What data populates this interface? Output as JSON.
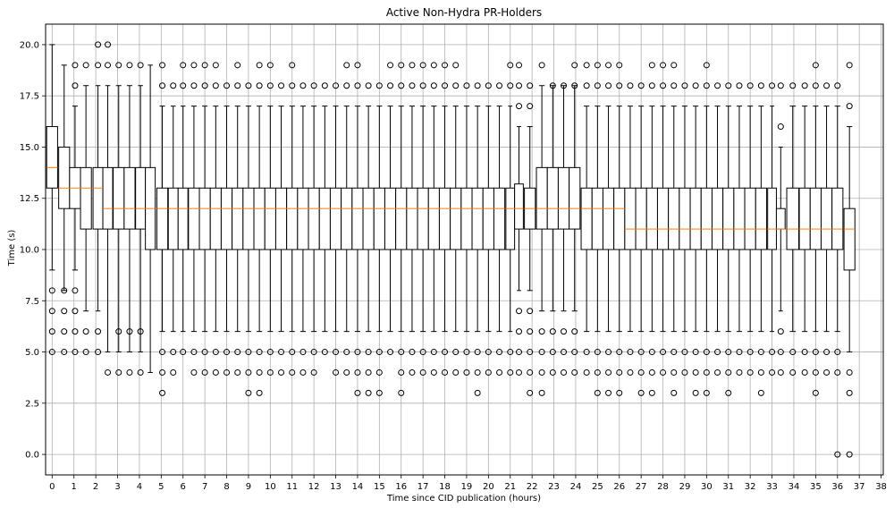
{
  "chart_data": {
    "type": "box",
    "title": "Active Non-Hydra PR-Holders",
    "xlabel": "Time since CID publication (hours)",
    "ylabel": "Time (s)",
    "ylim": [
      -1,
      21
    ],
    "xlim": [
      -0.3,
      38.1
    ],
    "grid": true,
    "x_ticks": [
      0,
      1,
      2,
      3,
      4,
      5,
      6,
      7,
      8,
      9,
      10,
      11,
      12,
      13,
      14,
      15,
      16,
      17,
      18,
      19,
      20,
      21,
      22,
      23,
      24,
      25,
      26,
      27,
      28,
      29,
      30,
      31,
      32,
      33,
      34,
      35,
      36,
      37,
      38
    ],
    "y_ticks": [
      "0.0",
      "2.5",
      "5.0",
      "7.5",
      "10.0",
      "12.5",
      "15.0",
      "17.5",
      "20.0"
    ],
    "y_tick_values": [
      0,
      2.5,
      5,
      7.5,
      10,
      12.5,
      15,
      17.5,
      20
    ],
    "colors": {
      "box_edge": "#000000",
      "median": "#ff7f0e",
      "grid": "#b0b0b0"
    },
    "boxes": [
      {
        "x": 0.0,
        "q1": 13,
        "med": 14,
        "q3": 16,
        "wlo": 9,
        "whi": 20,
        "fliers": [
          5,
          6,
          7,
          8
        ]
      },
      {
        "x": 0.55,
        "q1": 12,
        "med": 13,
        "q3": 15,
        "wlo": 8,
        "whi": 19,
        "fliers": [
          5,
          6,
          7,
          8
        ]
      },
      {
        "x": 1.05,
        "q1": 12,
        "med": 13,
        "q3": 14,
        "wlo": 9,
        "whi": 17,
        "fliers": [
          5,
          6,
          7,
          8,
          18,
          19
        ]
      },
      {
        "x": 1.55,
        "q1": 11,
        "med": 13,
        "q3": 14,
        "wlo": 7,
        "whi": 18,
        "fliers": [
          5,
          6,
          19
        ]
      },
      {
        "x": 2.1,
        "q1": 11,
        "med": 13,
        "q3": 14,
        "wlo": 7,
        "whi": 18,
        "fliers": [
          5,
          6,
          19,
          20
        ]
      },
      {
        "x": 2.55,
        "q1": 11,
        "med": 12,
        "q3": 14,
        "wlo": 5,
        "whi": 18,
        "fliers": [
          4,
          19,
          20
        ]
      },
      {
        "x": 3.05,
        "q1": 11,
        "med": 12,
        "q3": 14,
        "wlo": 5,
        "whi": 18,
        "fliers": [
          4,
          6,
          19
        ]
      },
      {
        "x": 3.55,
        "q1": 11,
        "med": 12,
        "q3": 14,
        "wlo": 5,
        "whi": 18,
        "fliers": [
          4,
          6,
          19
        ]
      },
      {
        "x": 4.05,
        "q1": 11,
        "med": 12,
        "q3": 14,
        "wlo": 5,
        "whi": 18,
        "fliers": [
          4,
          6,
          19
        ]
      },
      {
        "x": 4.5,
        "q1": 10,
        "med": 12,
        "q3": 14,
        "wlo": 4,
        "whi": 19,
        "fliers": []
      },
      {
        "x": 5.05,
        "q1": 10,
        "med": 12,
        "q3": 13,
        "wlo": 6,
        "whi": 17,
        "fliers": [
          3,
          4,
          5,
          18,
          19
        ]
      },
      {
        "x": 5.55,
        "q1": 10,
        "med": 12,
        "q3": 13,
        "wlo": 6,
        "whi": 17,
        "fliers": [
          4,
          5,
          18
        ]
      },
      {
        "x": 6.0,
        "q1": 10,
        "med": 12,
        "q3": 13,
        "wlo": 6,
        "whi": 17,
        "fliers": [
          5,
          18,
          19
        ]
      },
      {
        "x": 6.5,
        "q1": 10,
        "med": 12,
        "q3": 13,
        "wlo": 6,
        "whi": 17,
        "fliers": [
          4,
          5,
          18,
          19
        ]
      },
      {
        "x": 7.0,
        "q1": 10,
        "med": 12,
        "q3": 13,
        "wlo": 6,
        "whi": 17,
        "fliers": [
          4,
          5,
          18,
          19
        ]
      },
      {
        "x": 7.5,
        "q1": 10,
        "med": 12,
        "q3": 13,
        "wlo": 6,
        "whi": 17,
        "fliers": [
          4,
          5,
          18,
          19
        ]
      },
      {
        "x": 8.0,
        "q1": 10,
        "med": 12,
        "q3": 13,
        "wlo": 6,
        "whi": 17,
        "fliers": [
          4,
          5,
          18
        ]
      },
      {
        "x": 8.5,
        "q1": 10,
        "med": 12,
        "q3": 13,
        "wlo": 6,
        "whi": 17,
        "fliers": [
          4,
          5,
          18,
          19
        ]
      },
      {
        "x": 9.0,
        "q1": 10,
        "med": 12,
        "q3": 13,
        "wlo": 6,
        "whi": 17,
        "fliers": [
          3,
          4,
          5,
          18
        ]
      },
      {
        "x": 9.5,
        "q1": 10,
        "med": 12,
        "q3": 13,
        "wlo": 6,
        "whi": 17,
        "fliers": [
          3,
          4,
          5,
          18,
          19
        ]
      },
      {
        "x": 10.0,
        "q1": 10,
        "med": 12,
        "q3": 13,
        "wlo": 6,
        "whi": 17,
        "fliers": [
          4,
          5,
          18,
          19
        ]
      },
      {
        "x": 10.5,
        "q1": 10,
        "med": 12,
        "q3": 13,
        "wlo": 6,
        "whi": 17,
        "fliers": [
          4,
          5,
          18
        ]
      },
      {
        "x": 11.0,
        "q1": 10,
        "med": 12,
        "q3": 13,
        "wlo": 6,
        "whi": 17,
        "fliers": [
          4,
          5,
          18,
          19
        ]
      },
      {
        "x": 11.5,
        "q1": 10,
        "med": 12,
        "q3": 13,
        "wlo": 6,
        "whi": 17,
        "fliers": [
          4,
          5,
          18
        ]
      },
      {
        "x": 12.0,
        "q1": 10,
        "med": 12,
        "q3": 13,
        "wlo": 6,
        "whi": 17,
        "fliers": [
          4,
          5,
          18
        ]
      },
      {
        "x": 12.5,
        "q1": 10,
        "med": 12,
        "q3": 13,
        "wlo": 6,
        "whi": 17,
        "fliers": [
          5,
          18
        ]
      },
      {
        "x": 13.0,
        "q1": 10,
        "med": 12,
        "q3": 13,
        "wlo": 6,
        "whi": 17,
        "fliers": [
          4,
          5,
          18
        ]
      },
      {
        "x": 13.5,
        "q1": 10,
        "med": 12,
        "q3": 13,
        "wlo": 6,
        "whi": 17,
        "fliers": [
          4,
          5,
          18,
          19
        ]
      },
      {
        "x": 14.0,
        "q1": 10,
        "med": 12,
        "q3": 13,
        "wlo": 6,
        "whi": 17,
        "fliers": [
          3,
          4,
          5,
          18,
          19
        ]
      },
      {
        "x": 14.5,
        "q1": 10,
        "med": 12,
        "q3": 13,
        "wlo": 6,
        "whi": 17,
        "fliers": [
          3,
          4,
          5,
          18
        ]
      },
      {
        "x": 15.0,
        "q1": 10,
        "med": 12,
        "q3": 13,
        "wlo": 6,
        "whi": 17,
        "fliers": [
          3,
          4,
          5,
          18
        ]
      },
      {
        "x": 15.5,
        "q1": 10,
        "med": 12,
        "q3": 13,
        "wlo": 6,
        "whi": 17,
        "fliers": [
          5,
          18,
          19
        ]
      },
      {
        "x": 16.0,
        "q1": 10,
        "med": 12,
        "q3": 13,
        "wlo": 6,
        "whi": 17,
        "fliers": [
          3,
          4,
          5,
          18,
          19
        ]
      },
      {
        "x": 16.5,
        "q1": 10,
        "med": 12,
        "q3": 13,
        "wlo": 6,
        "whi": 17,
        "fliers": [
          4,
          5,
          18,
          19
        ]
      },
      {
        "x": 17.0,
        "q1": 10,
        "med": 12,
        "q3": 13,
        "wlo": 6,
        "whi": 17,
        "fliers": [
          4,
          5,
          18,
          19
        ]
      },
      {
        "x": 17.5,
        "q1": 10,
        "med": 12,
        "q3": 13,
        "wlo": 6,
        "whi": 17,
        "fliers": [
          4,
          5,
          18,
          19
        ]
      },
      {
        "x": 18.0,
        "q1": 10,
        "med": 12,
        "q3": 13,
        "wlo": 6,
        "whi": 17,
        "fliers": [
          4,
          5,
          18,
          19
        ]
      },
      {
        "x": 18.5,
        "q1": 10,
        "med": 12,
        "q3": 13,
        "wlo": 6,
        "whi": 17,
        "fliers": [
          4,
          5,
          18,
          19
        ]
      },
      {
        "x": 19.0,
        "q1": 10,
        "med": 12,
        "q3": 13,
        "wlo": 6,
        "whi": 17,
        "fliers": [
          4,
          5,
          18
        ]
      },
      {
        "x": 19.5,
        "q1": 10,
        "med": 12,
        "q3": 13,
        "wlo": 6,
        "whi": 17,
        "fliers": [
          3,
          4,
          5,
          18
        ]
      },
      {
        "x": 20.0,
        "q1": 10,
        "med": 12,
        "q3": 13,
        "wlo": 6,
        "whi": 17,
        "fliers": [
          4,
          5,
          18
        ]
      },
      {
        "x": 20.5,
        "q1": 10,
        "med": 12,
        "q3": 13,
        "wlo": 6,
        "whi": 17,
        "fliers": [
          4,
          5,
          18
        ]
      },
      {
        "x": 21.0,
        "q1": 10,
        "med": 12,
        "q3": 13,
        "wlo": 6,
        "whi": 17,
        "fliers": [
          4,
          5,
          18,
          19
        ]
      },
      {
        "x": 21.4,
        "q1": 11,
        "med": 12,
        "q3": 13.2,
        "wlo": 8,
        "whi": 16,
        "fliers": [
          4,
          5,
          6,
          7,
          17,
          18,
          19
        ]
      },
      {
        "x": 21.9,
        "q1": 11,
        "med": 12,
        "q3": 13,
        "wlo": 8,
        "whi": 16,
        "fliers": [
          3,
          4,
          5,
          6,
          7,
          17,
          18
        ]
      },
      {
        "x": 22.45,
        "q1": 11,
        "med": 12,
        "q3": 14,
        "wlo": 7,
        "whi": 18,
        "fliers": [
          3,
          4,
          5,
          6,
          19
        ]
      },
      {
        "x": 22.95,
        "q1": 11,
        "med": 12,
        "q3": 14,
        "wlo": 7,
        "whi": 18,
        "fliers": [
          4,
          5,
          6,
          18
        ]
      },
      {
        "x": 23.45,
        "q1": 11,
        "med": 12,
        "q3": 14,
        "wlo": 7,
        "whi": 18,
        "fliers": [
          4,
          5,
          6,
          18
        ]
      },
      {
        "x": 23.95,
        "q1": 11,
        "med": 12,
        "q3": 14,
        "wlo": 7,
        "whi": 18,
        "fliers": [
          4,
          5,
          6,
          18,
          19
        ]
      },
      {
        "x": 24.5,
        "q1": 10,
        "med": 12,
        "q3": 13,
        "wlo": 6,
        "whi": 17,
        "fliers": [
          4,
          5,
          18,
          19
        ]
      },
      {
        "x": 25.0,
        "q1": 10,
        "med": 12,
        "q3": 13,
        "wlo": 6,
        "whi": 17,
        "fliers": [
          3,
          4,
          5,
          18,
          19
        ]
      },
      {
        "x": 25.5,
        "q1": 10,
        "med": 12,
        "q3": 13,
        "wlo": 6,
        "whi": 17,
        "fliers": [
          3,
          4,
          5,
          18,
          19
        ]
      },
      {
        "x": 26.0,
        "q1": 10,
        "med": 12,
        "q3": 13,
        "wlo": 6,
        "whi": 17,
        "fliers": [
          3,
          4,
          5,
          18,
          19
        ]
      },
      {
        "x": 26.5,
        "q1": 10,
        "med": 11,
        "q3": 13,
        "wlo": 6,
        "whi": 17,
        "fliers": [
          4,
          5,
          18
        ]
      },
      {
        "x": 27.0,
        "q1": 10,
        "med": 11,
        "q3": 13,
        "wlo": 6,
        "whi": 17,
        "fliers": [
          3,
          4,
          5,
          18
        ]
      },
      {
        "x": 27.5,
        "q1": 10,
        "med": 11,
        "q3": 13,
        "wlo": 6,
        "whi": 17,
        "fliers": [
          3,
          4,
          5,
          18,
          19
        ]
      },
      {
        "x": 28.0,
        "q1": 10,
        "med": 11,
        "q3": 13,
        "wlo": 6,
        "whi": 17,
        "fliers": [
          4,
          5,
          18,
          19
        ]
      },
      {
        "x": 28.5,
        "q1": 10,
        "med": 11,
        "q3": 13,
        "wlo": 6,
        "whi": 17,
        "fliers": [
          3,
          4,
          5,
          18,
          19
        ]
      },
      {
        "x": 29.0,
        "q1": 10,
        "med": 11,
        "q3": 13,
        "wlo": 6,
        "whi": 17,
        "fliers": [
          4,
          5,
          18
        ]
      },
      {
        "x": 29.5,
        "q1": 10,
        "med": 11,
        "q3": 13,
        "wlo": 6,
        "whi": 17,
        "fliers": [
          3,
          4,
          5,
          18
        ]
      },
      {
        "x": 30.0,
        "q1": 10,
        "med": 11,
        "q3": 13,
        "wlo": 6,
        "whi": 17,
        "fliers": [
          3,
          4,
          5,
          18,
          19
        ]
      },
      {
        "x": 30.5,
        "q1": 10,
        "med": 11,
        "q3": 13,
        "wlo": 6,
        "whi": 17,
        "fliers": [
          4,
          5,
          18
        ]
      },
      {
        "x": 31.0,
        "q1": 10,
        "med": 11,
        "q3": 13,
        "wlo": 6,
        "whi": 17,
        "fliers": [
          3,
          4,
          5,
          18
        ]
      },
      {
        "x": 31.5,
        "q1": 10,
        "med": 11,
        "q3": 13,
        "wlo": 6,
        "whi": 17,
        "fliers": [
          4,
          5,
          18
        ]
      },
      {
        "x": 32.0,
        "q1": 10,
        "med": 11,
        "q3": 13,
        "wlo": 6,
        "whi": 17,
        "fliers": [
          4,
          5,
          18
        ]
      },
      {
        "x": 32.5,
        "q1": 10,
        "med": 11,
        "q3": 13,
        "wlo": 6,
        "whi": 17,
        "fliers": [
          3,
          4,
          5,
          18
        ]
      },
      {
        "x": 33.0,
        "q1": 10,
        "med": 11,
        "q3": 13,
        "wlo": 6,
        "whi": 17,
        "fliers": [
          4,
          5,
          18
        ]
      },
      {
        "x": 33.4,
        "q1": 11,
        "med": 11,
        "q3": 12,
        "wlo": 7,
        "whi": 15,
        "fliers": [
          4,
          5,
          6,
          16,
          18
        ]
      },
      {
        "x": 33.95,
        "q1": 10,
        "med": 11,
        "q3": 13,
        "wlo": 6,
        "whi": 17,
        "fliers": [
          4,
          5,
          18
        ]
      },
      {
        "x": 34.5,
        "q1": 10,
        "med": 11,
        "q3": 13,
        "wlo": 6,
        "whi": 17,
        "fliers": [
          4,
          5,
          18
        ]
      },
      {
        "x": 35.0,
        "q1": 10,
        "med": 11,
        "q3": 13,
        "wlo": 6,
        "whi": 17,
        "fliers": [
          3,
          4,
          5,
          18,
          19
        ]
      },
      {
        "x": 35.5,
        "q1": 10,
        "med": 11,
        "q3": 13,
        "wlo": 6,
        "whi": 17,
        "fliers": [
          4,
          5,
          18
        ]
      },
      {
        "x": 36.0,
        "q1": 10,
        "med": 11,
        "q3": 13,
        "wlo": 6,
        "whi": 17,
        "fliers": [
          0,
          4,
          5,
          18
        ]
      },
      {
        "x": 36.55,
        "q1": 9,
        "med": 11,
        "q3": 12,
        "wlo": 5,
        "whi": 16,
        "fliers": [
          0,
          3,
          4,
          17,
          19
        ]
      }
    ]
  }
}
